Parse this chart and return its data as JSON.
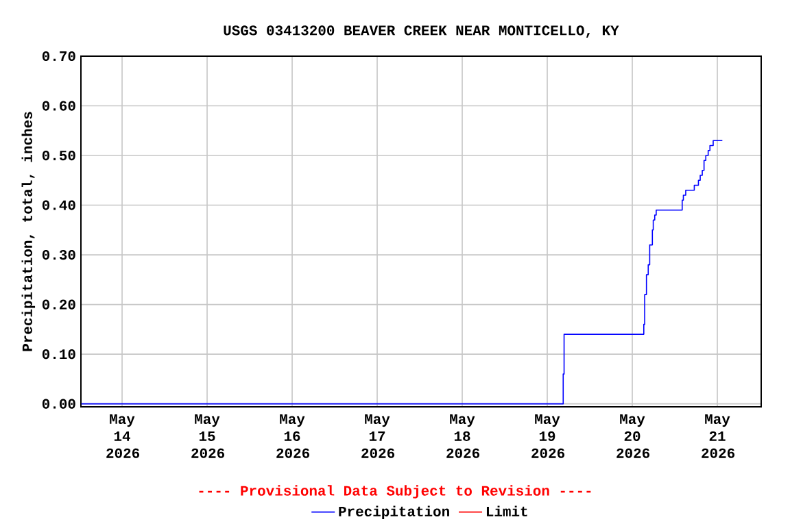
{
  "chart_data": {
    "type": "step",
    "title": "USGS 03413200 BEAVER CREEK NEAR MONTICELLO, KY",
    "ylabel": "Precipitation, total, inches",
    "annotations": [
      "---- Provisional Data Subject to Revision ----"
    ],
    "xlim": [
      "2026-05-13T12:23",
      "2026-05-21T12:23"
    ],
    "xticks": [
      {
        "value": "2026-05-14",
        "label": "May 14 2026"
      },
      {
        "value": "2026-05-15",
        "label": "May 15 2026"
      },
      {
        "value": "2026-05-16",
        "label": "May 16 2026"
      },
      {
        "value": "2026-05-17",
        "label": "May 17 2026"
      },
      {
        "value": "2026-05-18",
        "label": "May 18 2026"
      },
      {
        "value": "2026-05-19",
        "label": "May 19 2026"
      },
      {
        "value": "2026-05-20",
        "label": "May 20 2026"
      },
      {
        "value": "2026-05-21",
        "label": "May 21 2026"
      }
    ],
    "ylim": [
      -0.006,
      0.7
    ],
    "yticks": [
      {
        "value": 0,
        "label": "0.00"
      },
      {
        "value": 0.1,
        "label": "0.10"
      },
      {
        "value": 0.2,
        "label": "0.20"
      },
      {
        "value": 0.3,
        "label": "0.30"
      },
      {
        "value": 0.4,
        "label": "0.40"
      },
      {
        "value": 0.5,
        "label": "0.50"
      },
      {
        "value": 0.6,
        "label": "0.60"
      },
      {
        "value": 0.7,
        "label": "0.70"
      }
    ],
    "grid": true,
    "legend": "bottom",
    "x": [
      "2026-05-13T12:30",
      "2026-05-19T04:30",
      "2026-05-19T04:45",
      "2026-05-20T03:15",
      "2026-05-20T03:30",
      "2026-05-20T04:00",
      "2026-05-20T04:30",
      "2026-05-20T04:55",
      "2026-05-20T05:40",
      "2026-05-20T05:55",
      "2026-05-20T06:20",
      "2026-05-20T06:45",
      "2026-05-20T14:05",
      "2026-05-20T14:25",
      "2026-05-20T15:05",
      "2026-05-20T17:30",
      "2026-05-20T18:40",
      "2026-05-20T19:10",
      "2026-05-20T19:45",
      "2026-05-20T20:15",
      "2026-05-20T20:45",
      "2026-05-20T21:25",
      "2026-05-20T21:55",
      "2026-05-20T22:50",
      "2026-05-21T01:25"
    ],
    "series": [
      {
        "name": "Precipitation",
        "color": "#0000ff",
        "values": [
          0,
          0.06,
          0.14,
          0.16,
          0.22,
          0.26,
          0.28,
          0.32,
          0.35,
          0.37,
          0.38,
          0.39,
          0.41,
          0.42,
          0.43,
          0.44,
          0.45,
          0.46,
          0.47,
          0.49,
          0.5,
          0.51,
          0.52,
          0.53,
          0.53
        ]
      },
      {
        "name": "Limit",
        "color": "#ff0000",
        "values": [
          null,
          null,
          null,
          null,
          null,
          null,
          null,
          null,
          null,
          null,
          null,
          null,
          null,
          null,
          null,
          null,
          null,
          null,
          null,
          null,
          null,
          null,
          null,
          null,
          null
        ]
      }
    ]
  }
}
